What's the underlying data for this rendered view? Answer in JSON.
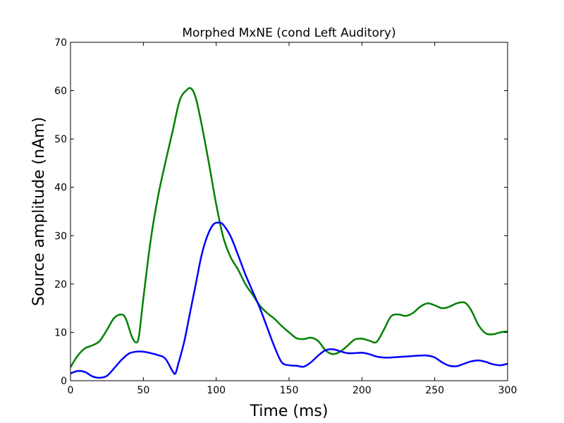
{
  "chart_data": {
    "type": "line",
    "title": "Morphed MxNE (cond Left Auditory)",
    "xlabel": "Time (ms)",
    "ylabel": "Source amplitude (nAm)",
    "xlim": [
      0,
      300
    ],
    "ylim": [
      0,
      70
    ],
    "xticks": [
      0,
      50,
      100,
      150,
      200,
      250,
      300
    ],
    "yticks": [
      0,
      10,
      20,
      30,
      40,
      50,
      60,
      70
    ],
    "grid": false,
    "series": [
      {
        "name": "green",
        "color": "#008000",
        "x": [
          0,
          5,
          10,
          15,
          20,
          25,
          30,
          35,
          38,
          42,
          45,
          47,
          50,
          55,
          60,
          65,
          70,
          75,
          80,
          83,
          86,
          90,
          95,
          100,
          105,
          110,
          115,
          120,
          125,
          130,
          135,
          140,
          145,
          150,
          155,
          160,
          165,
          170,
          175,
          180,
          185,
          190,
          195,
          200,
          205,
          210,
          215,
          220,
          225,
          230,
          235,
          240,
          245,
          250,
          255,
          260,
          265,
          270,
          273,
          276,
          280,
          285,
          290,
          295,
          300
        ],
        "y": [
          2.8,
          5.2,
          6.7,
          7.3,
          8.2,
          10.5,
          13.0,
          13.7,
          12.8,
          9.2,
          7.9,
          9.3,
          17.0,
          29.0,
          38.0,
          45.0,
          51.5,
          58.0,
          60.2,
          60.4,
          58.5,
          53.0,
          45.0,
          36.5,
          29.5,
          25.5,
          23.0,
          20.0,
          17.8,
          15.5,
          14.0,
          12.8,
          11.3,
          10.0,
          8.8,
          8.6,
          8.9,
          8.2,
          6.3,
          5.5,
          6.0,
          7.2,
          8.5,
          8.7,
          8.3,
          8.0,
          10.5,
          13.3,
          13.7,
          13.4,
          14.0,
          15.3,
          16.0,
          15.6,
          15.0,
          15.3,
          16.0,
          16.2,
          15.5,
          14.0,
          11.5,
          9.8,
          9.6,
          10.0,
          10.2
        ]
      },
      {
        "name": "blue",
        "color": "#0000ff",
        "x": [
          0,
          5,
          10,
          15,
          20,
          25,
          30,
          35,
          40,
          45,
          50,
          55,
          60,
          65,
          70,
          72,
          74,
          78,
          82,
          86,
          90,
          94,
          98,
          102,
          105,
          110,
          115,
          120,
          125,
          130,
          135,
          140,
          145,
          150,
          155,
          160,
          165,
          170,
          175,
          180,
          185,
          190,
          195,
          200,
          205,
          210,
          215,
          220,
          225,
          230,
          235,
          240,
          245,
          250,
          255,
          260,
          265,
          270,
          275,
          280,
          285,
          290,
          295,
          300
        ],
        "y": [
          1.5,
          2.0,
          1.8,
          0.9,
          0.6,
          1.0,
          2.6,
          4.3,
          5.6,
          6.0,
          6.0,
          5.7,
          5.3,
          4.6,
          2.0,
          1.5,
          3.5,
          8.0,
          14.0,
          20.0,
          26.0,
          30.0,
          32.3,
          32.7,
          32.2,
          29.8,
          26.0,
          22.0,
          18.5,
          15.0,
          11.0,
          7.0,
          3.8,
          3.2,
          3.1,
          2.9,
          3.8,
          5.2,
          6.3,
          6.5,
          6.1,
          5.7,
          5.7,
          5.8,
          5.5,
          5.0,
          4.8,
          4.8,
          4.9,
          5.0,
          5.1,
          5.2,
          5.2,
          4.8,
          3.8,
          3.1,
          3.0,
          3.5,
          4.0,
          4.2,
          3.9,
          3.4,
          3.2,
          3.5
        ]
      }
    ]
  }
}
